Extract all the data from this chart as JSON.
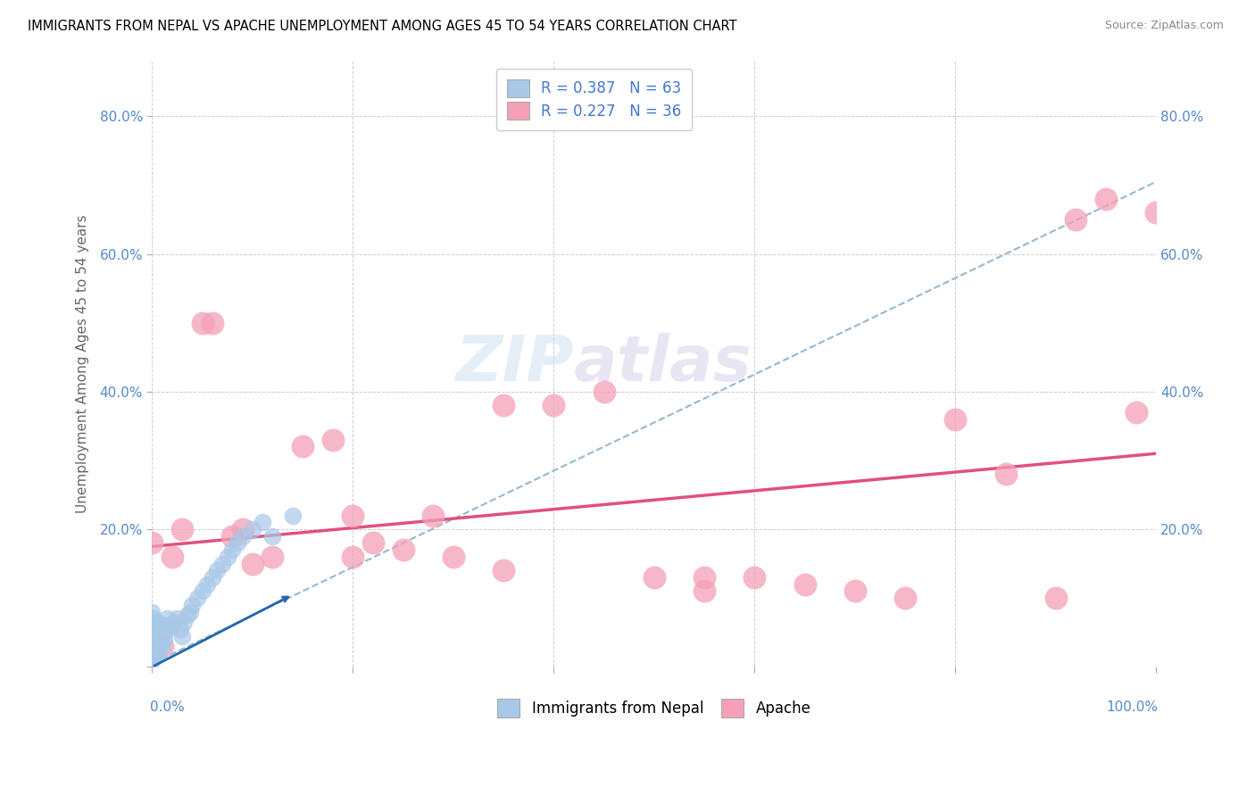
{
  "title": "IMMIGRANTS FROM NEPAL VS APACHE UNEMPLOYMENT AMONG AGES 45 TO 54 YEARS CORRELATION CHART",
  "source": "Source: ZipAtlas.com",
  "ylabel": "Unemployment Among Ages 45 to 54 years",
  "watermark_zip": "ZIP",
  "watermark_atlas": "atlas",
  "legend_blue_text": "R = 0.387   N = 63",
  "legend_pink_text": "R = 0.227   N = 36",
  "legend_blue_label": "Immigrants from Nepal",
  "legend_pink_label": "Apache",
  "blue_scatter_color": "#a8c8e8",
  "pink_scatter_color": "#f4a0b8",
  "blue_line_color": "#6baed6",
  "pink_line_color": "#e05080",
  "legend_text_color": "#4477cc",
  "nepal_x": [
    0.0,
    0.0,
    0.0,
    0.0,
    0.0,
    0.0,
    0.0,
    0.0,
    0.0,
    0.0,
    0.001,
    0.001,
    0.001,
    0.001,
    0.001,
    0.001,
    0.002,
    0.002,
    0.002,
    0.002,
    0.003,
    0.003,
    0.003,
    0.004,
    0.004,
    0.005,
    0.005,
    0.006,
    0.006,
    0.007,
    0.007,
    0.008,
    0.009,
    0.01,
    0.011,
    0.012,
    0.013,
    0.015,
    0.016,
    0.018,
    0.02,
    0.022,
    0.025,
    0.028,
    0.03,
    0.032,
    0.035,
    0.038,
    0.04,
    0.045,
    0.05,
    0.055,
    0.06,
    0.065,
    0.07,
    0.075,
    0.08,
    0.085,
    0.09,
    0.1,
    0.11,
    0.12,
    0.14
  ],
  "nepal_y": [
    0.02,
    0.035,
    0.05,
    0.065,
    0.08,
    0.02,
    0.04,
    0.06,
    0.01,
    0.03,
    0.04,
    0.055,
    0.025,
    0.07,
    0.015,
    0.045,
    0.06,
    0.03,
    0.015,
    0.05,
    0.04,
    0.06,
    0.025,
    0.055,
    0.035,
    0.065,
    0.02,
    0.05,
    0.03,
    0.045,
    0.02,
    0.055,
    0.04,
    0.03,
    0.05,
    0.04,
    0.06,
    0.07,
    0.055,
    0.06,
    0.06,
    0.065,
    0.07,
    0.055,
    0.045,
    0.065,
    0.075,
    0.08,
    0.09,
    0.1,
    0.11,
    0.12,
    0.13,
    0.14,
    0.15,
    0.16,
    0.17,
    0.18,
    0.19,
    0.2,
    0.21,
    0.19,
    0.22
  ],
  "apache_x": [
    0.0,
    0.01,
    0.02,
    0.03,
    0.05,
    0.06,
    0.08,
    0.09,
    0.1,
    0.12,
    0.15,
    0.18,
    0.2,
    0.2,
    0.22,
    0.25,
    0.28,
    0.3,
    0.35,
    0.4,
    0.45,
    0.5,
    0.55,
    0.6,
    0.65,
    0.7,
    0.75,
    0.8,
    0.85,
    0.9,
    0.92,
    0.95,
    0.98,
    1.0,
    0.35,
    0.55
  ],
  "apache_y": [
    0.18,
    0.03,
    0.16,
    0.2,
    0.5,
    0.5,
    0.19,
    0.2,
    0.15,
    0.16,
    0.32,
    0.33,
    0.22,
    0.16,
    0.18,
    0.17,
    0.22,
    0.16,
    0.14,
    0.38,
    0.4,
    0.13,
    0.13,
    0.13,
    0.12,
    0.11,
    0.1,
    0.36,
    0.28,
    0.1,
    0.65,
    0.68,
    0.37,
    0.66,
    0.38,
    0.11
  ],
  "nepal_trend_slope": 0.7,
  "nepal_trend_intercept": 0.005,
  "apache_trend_slope": 0.135,
  "apache_trend_intercept": 0.175,
  "xlim": [
    0.0,
    1.0
  ],
  "ylim": [
    0.0,
    0.88
  ],
  "yticks": [
    0.0,
    0.2,
    0.4,
    0.6,
    0.8
  ],
  "ytick_labels": [
    "",
    "20.0%",
    "40.0%",
    "60.0%",
    "80.0%"
  ],
  "right_ytick_labels": [
    "",
    "20.0%",
    "40.0%",
    "60.0%",
    "80.0%"
  ]
}
